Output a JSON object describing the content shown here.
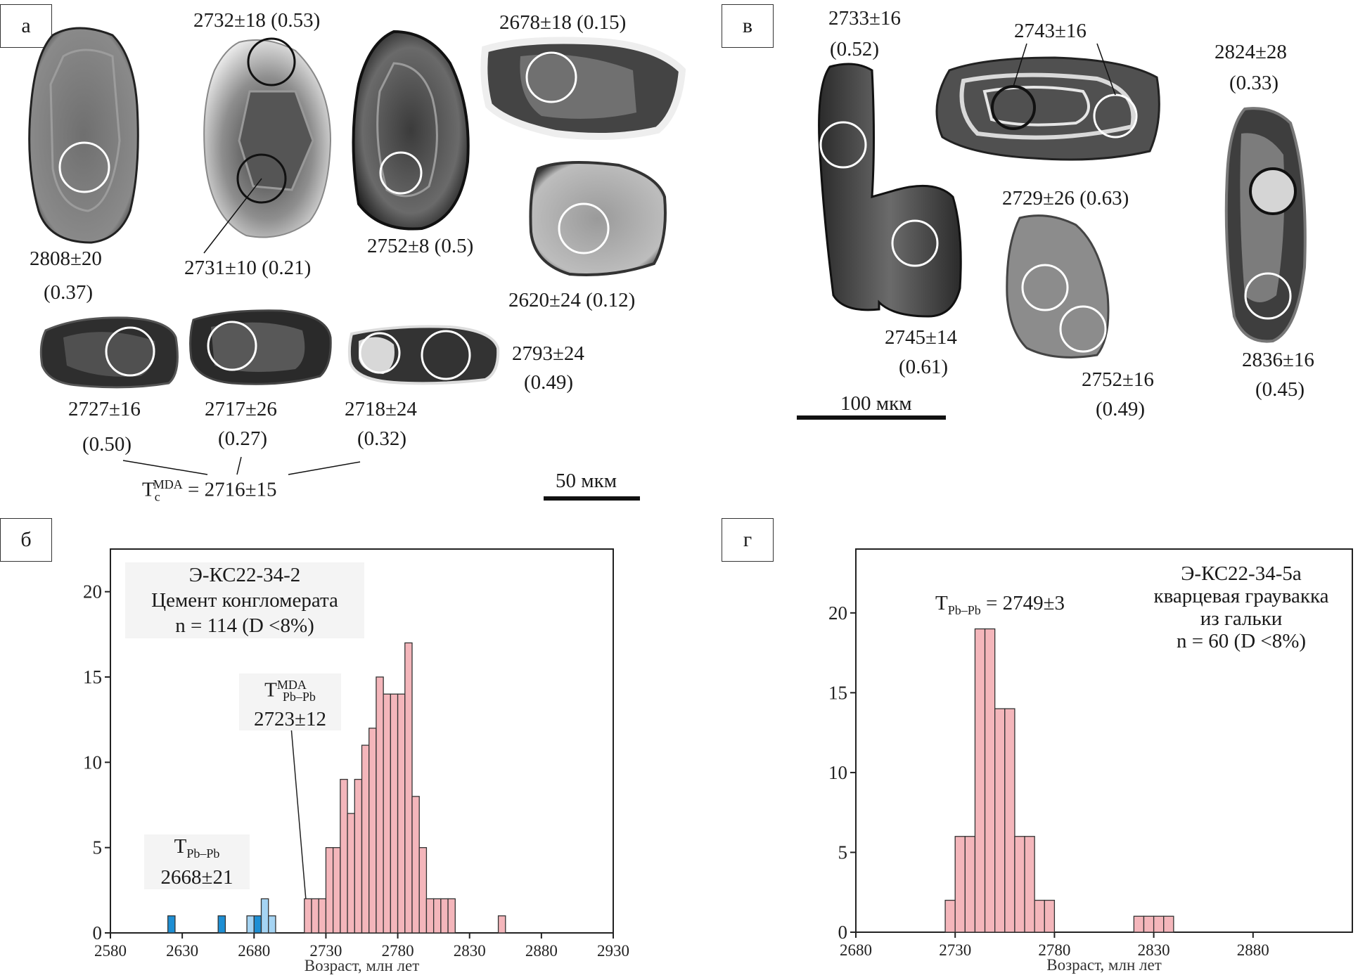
{
  "panels": {
    "a": "а",
    "b": "б",
    "v": "в",
    "g": "г"
  },
  "panel_a": {
    "grain_labels": [
      {
        "id": "g1",
        "age": "2808±20",
        "ratio": "(0.37)"
      },
      {
        "id": "g2a",
        "text": "2732±18 (0.53)"
      },
      {
        "id": "g2b",
        "text": "2731±10 (0.21)"
      },
      {
        "id": "g3",
        "text": "2752±8 (0.5)"
      },
      {
        "id": "g4",
        "text": "2678±18 (0.15)"
      },
      {
        "id": "g5",
        "text": "2620±24 (0.12)"
      },
      {
        "id": "g6",
        "age": "2727±16",
        "ratio": "(0.50)"
      },
      {
        "id": "g7",
        "age": "2717±26",
        "ratio": "(0.27)"
      },
      {
        "id": "g8",
        "age": "2718±24",
        "ratio": "(0.32)"
      },
      {
        "id": "g9",
        "age": "2793±24",
        "ratio": "(0.49)"
      }
    ],
    "mda": {
      "symbol": "T",
      "sub": "c",
      "sup": "MDA",
      "value": "= 2716±15"
    },
    "scale_bar": "50 мкм"
  },
  "panel_v": {
    "grain_labels": [
      {
        "id": "v1",
        "age": "2733±16",
        "ratio": "(0.52)"
      },
      {
        "id": "v2",
        "text": "2743±16"
      },
      {
        "id": "v3",
        "age": "2824±28",
        "ratio": "(0.33)"
      },
      {
        "id": "v4",
        "text": "2729±26 (0.63)"
      },
      {
        "id": "v5",
        "age": "2745±14",
        "ratio": "(0.61)"
      },
      {
        "id": "v6",
        "age": "2752±16",
        "ratio": "(0.49)"
      },
      {
        "id": "v7",
        "age": "2836±16",
        "ratio": "(0.45)"
      }
    ],
    "scale_bar": "100 мкм"
  },
  "colors": {
    "pink": "#f4b6bb",
    "dark_blue": "#1e8fd4",
    "light_blue": "#a5d4f3"
  },
  "chart_data": [
    {
      "type": "bar",
      "panel": "б",
      "title_lines": [
        "Э-КС22-34-2",
        "Цемент конгломерата",
        "n = 114 (D <8%)"
      ],
      "xlabel": "Возраст, млн лет",
      "ylabel": "",
      "xlim": [
        2580,
        2930
      ],
      "ylim": [
        0,
        22.5
      ],
      "xticks": [
        2580,
        2630,
        2680,
        2730,
        2780,
        2830,
        2880,
        2930
      ],
      "yticks": [
        0,
        5,
        10,
        15,
        20
      ],
      "bin_width": 5,
      "bins": [
        {
          "x0": 2620,
          "x1": 2625,
          "count": 1,
          "group": "dark_blue"
        },
        {
          "x0": 2655,
          "x1": 2660,
          "count": 1,
          "group": "dark_blue"
        },
        {
          "x0": 2675,
          "x1": 2680,
          "count": 1,
          "group": "light_blue"
        },
        {
          "x0": 2680,
          "x1": 2685,
          "count": 1,
          "group": "dark_blue"
        },
        {
          "x0": 2685,
          "x1": 2690,
          "count": 2,
          "group": "light_blue"
        },
        {
          "x0": 2690,
          "x1": 2695,
          "count": 1,
          "group": "light_blue"
        },
        {
          "x0": 2715,
          "x1": 2720,
          "count": 2,
          "group": "pink"
        },
        {
          "x0": 2720,
          "x1": 2725,
          "count": 2,
          "group": "pink"
        },
        {
          "x0": 2725,
          "x1": 2730,
          "count": 2,
          "group": "pink"
        },
        {
          "x0": 2730,
          "x1": 2735,
          "count": 5,
          "group": "pink"
        },
        {
          "x0": 2735,
          "x1": 2740,
          "count": 5,
          "group": "pink"
        },
        {
          "x0": 2740,
          "x1": 2745,
          "count": 9,
          "group": "pink"
        },
        {
          "x0": 2745,
          "x1": 2750,
          "count": 7,
          "group": "pink"
        },
        {
          "x0": 2750,
          "x1": 2755,
          "count": 9,
          "group": "pink"
        },
        {
          "x0": 2755,
          "x1": 2760,
          "count": 11,
          "group": "pink"
        },
        {
          "x0": 2760,
          "x1": 2765,
          "count": 12,
          "group": "pink"
        },
        {
          "x0": 2765,
          "x1": 2770,
          "count": 15,
          "group": "pink"
        },
        {
          "x0": 2770,
          "x1": 2775,
          "count": 14,
          "group": "pink"
        },
        {
          "x0": 2775,
          "x1": 2780,
          "count": 14,
          "group": "pink"
        },
        {
          "x0": 2780,
          "x1": 2785,
          "count": 14,
          "group": "pink"
        },
        {
          "x0": 2785,
          "x1": 2790,
          "count": 17,
          "group": "pink"
        },
        {
          "x0": 2790,
          "x1": 2795,
          "count": 8,
          "group": "pink"
        },
        {
          "x0": 2795,
          "x1": 2800,
          "count": 5,
          "group": "pink"
        },
        {
          "x0": 2800,
          "x1": 2805,
          "count": 2,
          "group": "pink"
        },
        {
          "x0": 2805,
          "x1": 2810,
          "count": 2,
          "group": "pink"
        },
        {
          "x0": 2810,
          "x1": 2815,
          "count": 2,
          "group": "pink"
        },
        {
          "x0": 2815,
          "x1": 2820,
          "count": 2,
          "group": "pink"
        },
        {
          "x0": 2850,
          "x1": 2855,
          "count": 1,
          "group": "pink"
        }
      ],
      "annotations": [
        {
          "id": "mda",
          "symbol": "T",
          "sub": "Pb–Pb",
          "sup": "MDA",
          "value": "2723±12",
          "target_x": 2716
        },
        {
          "id": "young",
          "symbol": "T",
          "sub": "Pb–Pb",
          "value": "2668±21"
        }
      ]
    },
    {
      "type": "bar",
      "panel": "г",
      "title_lines": [
        "Э-КС22-34-5а",
        "кварцевая граувакка",
        "из гальки",
        "n = 60 (D <8%)"
      ],
      "xlabel": "Возраст, млн лет",
      "ylabel": "",
      "xlim": [
        2680,
        2930
      ],
      "ylim": [
        0,
        24
      ],
      "xticks": [
        2680,
        2730,
        2780,
        2830,
        2880
      ],
      "yticks": [
        0,
        5,
        10,
        15,
        20
      ],
      "bin_width": 5,
      "bins": [
        {
          "x0": 2725,
          "x1": 2730,
          "count": 2,
          "group": "pink"
        },
        {
          "x0": 2730,
          "x1": 2735,
          "count": 6,
          "group": "pink"
        },
        {
          "x0": 2735,
          "x1": 2740,
          "count": 6,
          "group": "pink"
        },
        {
          "x0": 2740,
          "x1": 2745,
          "count": 19,
          "group": "pink"
        },
        {
          "x0": 2745,
          "x1": 2750,
          "count": 19,
          "group": "pink"
        },
        {
          "x0": 2750,
          "x1": 2755,
          "count": 14,
          "group": "pink"
        },
        {
          "x0": 2755,
          "x1": 2760,
          "count": 14,
          "group": "pink"
        },
        {
          "x0": 2760,
          "x1": 2765,
          "count": 6,
          "group": "pink"
        },
        {
          "x0": 2765,
          "x1": 2770,
          "count": 6,
          "group": "pink"
        },
        {
          "x0": 2770,
          "x1": 2775,
          "count": 2,
          "group": "pink"
        },
        {
          "x0": 2775,
          "x1": 2780,
          "count": 2,
          "group": "pink"
        },
        {
          "x0": 2780,
          "x1": 2785,
          "count": 0,
          "group": "pink"
        },
        {
          "x0": 2820,
          "x1": 2825,
          "count": 1,
          "group": "pink"
        },
        {
          "x0": 2825,
          "x1": 2830,
          "count": 1,
          "group": "pink"
        },
        {
          "x0": 2830,
          "x1": 2835,
          "count": 1,
          "group": "pink"
        },
        {
          "x0": 2835,
          "x1": 2840,
          "count": 1,
          "group": "pink"
        }
      ],
      "annotations": [
        {
          "id": "peak",
          "symbol": "T",
          "sub": "Pb–Pb",
          "value": "= 2749±3"
        }
      ]
    }
  ]
}
